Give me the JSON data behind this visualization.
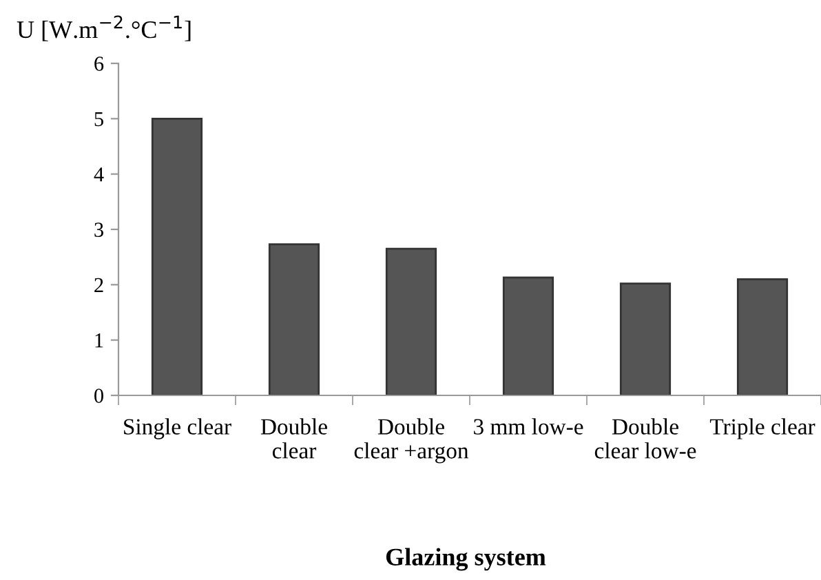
{
  "chart_data": {
    "type": "bar",
    "ylabel": "U [W.m$^{−2}$.°C$^{−1}$]",
    "xlabel": "Glazing system",
    "categories": [
      "Single clear",
      "Double\nclear",
      "Double\nclear +argon",
      "3 mm low-e",
      "Double\nclear low-e",
      "Triple clear"
    ],
    "values": [
      5.0,
      2.73,
      2.65,
      2.13,
      2.02,
      2.1
    ],
    "color": "#555555",
    "ylim": [
      0,
      6
    ],
    "yticks": [
      0,
      1,
      2,
      3,
      4,
      5,
      6
    ],
    "grid": false
  }
}
